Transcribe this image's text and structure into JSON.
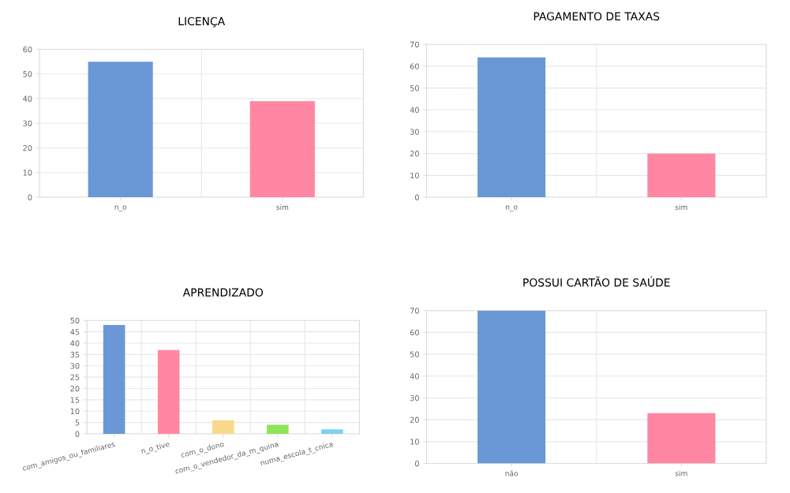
{
  "chart_data": [
    {
      "type": "bar",
      "title": "LICENÇA",
      "categories": [
        "n_o",
        "sim"
      ],
      "values": [
        55,
        39
      ],
      "colors": [
        "#6a98d6",
        "#ff87a3"
      ],
      "ylim": [
        0,
        60
      ],
      "yticks": [
        0,
        10,
        20,
        30,
        40,
        50,
        60
      ],
      "grid": true
    },
    {
      "type": "bar",
      "title": "PAGAMENTO DE TAXAS",
      "categories": [
        "n_o",
        "sim"
      ],
      "values": [
        64,
        20
      ],
      "colors": [
        "#6a98d6",
        "#ff87a3"
      ],
      "ylim": [
        0,
        70
      ],
      "yticks": [
        0,
        10,
        20,
        30,
        40,
        50,
        60,
        70
      ],
      "grid": true
    },
    {
      "type": "bar",
      "title": "APRENDIZADO",
      "categories": [
        "com_amigos_ou_familiares",
        "n_o_tive",
        "com_o_dono",
        "com_o_vendedor_da_m_quina",
        "numa_escola_t_cnica"
      ],
      "values": [
        48,
        37,
        6,
        4,
        2
      ],
      "colors": [
        "#6a98d6",
        "#ff87a3",
        "#fbd98a",
        "#8ee45a",
        "#7fd0f5"
      ],
      "ylim": [
        0,
        50
      ],
      "yticks": [
        0,
        5,
        10,
        15,
        20,
        25,
        30,
        35,
        40,
        45,
        50
      ],
      "grid": true
    },
    {
      "type": "bar",
      "title": "POSSUI CARTÃO DE SAÚDE",
      "categories": [
        "não",
        "sim"
      ],
      "values": [
        70,
        23
      ],
      "colors": [
        "#6a98d6",
        "#ff87a3"
      ],
      "ylim": [
        0,
        70
      ],
      "yticks": [
        0,
        10,
        20,
        30,
        40,
        50,
        60,
        70
      ],
      "grid": true
    }
  ]
}
